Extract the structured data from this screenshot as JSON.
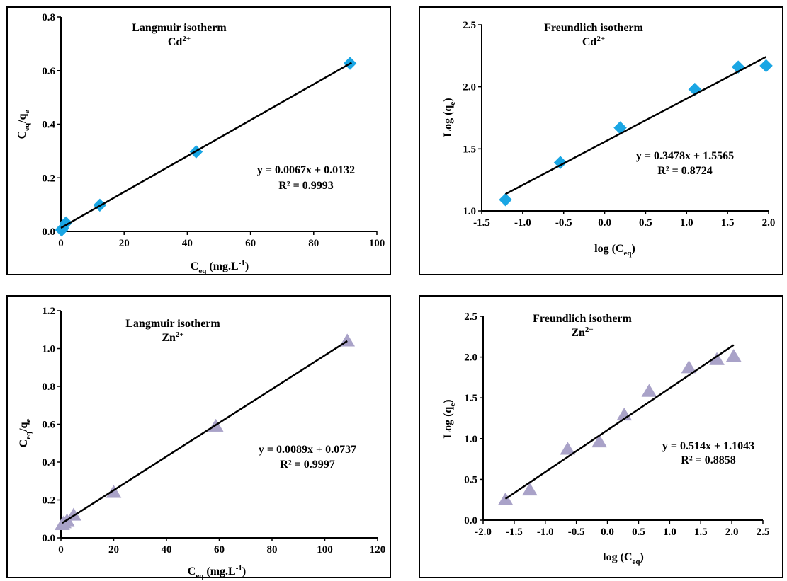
{
  "chart_data": [
    {
      "type": "scatter",
      "title": "Langmuir isotherm",
      "subtitle_base": "Cd",
      "subtitle_sup": "2+",
      "xlabel_base": "C",
      "xlabel_sub": "eq",
      "xlabel_unit_pre": " (mg.L",
      "xlabel_unit_sup": "-1",
      "xlabel_unit_post": ")",
      "ylabel_base1": "C",
      "ylabel_sub1": "eq",
      "ylabel_mid": "/q",
      "ylabel_sub2": "e",
      "xlim": [
        0,
        100
      ],
      "ylim": [
        0,
        0.8
      ],
      "xticks": [
        "0",
        "20",
        "40",
        "60",
        "80",
        "100"
      ],
      "yticks": [
        "0.0",
        "0.2",
        "0.4",
        "0.6",
        "0.8"
      ],
      "marker": "diamond",
      "marker_color": "#1aa6e4",
      "grid": false,
      "x": [
        0.2,
        0.6,
        1.6,
        12.3,
        42.8,
        91.5
      ],
      "y": [
        0.005,
        0.012,
        0.032,
        0.098,
        0.297,
        0.627
      ],
      "fit": {
        "slope": 0.0067,
        "intercept": 0.0132,
        "x_range": [
          0,
          92
        ]
      },
      "equation": "y = 0.0067x + 0.0132",
      "r2": "R² = 0.9993"
    },
    {
      "type": "scatter",
      "title": "Freundlich isotherm",
      "subtitle_base": "Cd",
      "subtitle_sup": "2+",
      "xlabel_base": "log (C",
      "xlabel_sub": "eq",
      "xlabel_unit_pre": ")",
      "xlabel_unit_sup": "",
      "xlabel_unit_post": "",
      "ylabel_base1": "Log (q",
      "ylabel_sub1": "e",
      "ylabel_mid": ")",
      "ylabel_sub2": "",
      "xlim": [
        -1.5,
        2.0
      ],
      "ylim": [
        1.0,
        2.5
      ],
      "xticks": [
        "-1.5",
        "-1.0",
        "-0.5",
        "0.0",
        "0.5",
        "1.0",
        "1.5",
        "2.0"
      ],
      "yticks": [
        "1.0",
        "1.5",
        "2.0",
        "2.5"
      ],
      "marker": "diamond",
      "marker_color": "#1aa6e4",
      "grid": false,
      "x": [
        -1.21,
        -0.54,
        0.19,
        1.1,
        1.63,
        1.97
      ],
      "y": [
        1.09,
        1.39,
        1.67,
        1.98,
        2.16,
        2.17
      ],
      "fit": {
        "slope": 0.3478,
        "intercept": 1.5565,
        "x_range": [
          -1.21,
          1.97
        ]
      },
      "equation": "y = 0.3478x + 1.5565",
      "r2": "R² = 0.8724"
    },
    {
      "type": "scatter",
      "title": "Langmuir isotherm",
      "subtitle_base": "Zn",
      "subtitle_sup": "2+",
      "xlabel_base": "C",
      "xlabel_sub": "eq",
      "xlabel_unit_pre": " (mg.L",
      "xlabel_unit_sup": "-1",
      "xlabel_unit_post": ")",
      "ylabel_base1": "C",
      "ylabel_sub1": "eq",
      "ylabel_mid": "/q",
      "ylabel_sub2": "e",
      "xlim": [
        0,
        120
      ],
      "ylim": [
        0,
        1.2
      ],
      "xticks": [
        "0",
        "20",
        "40",
        "60",
        "80",
        "100",
        "120"
      ],
      "yticks": [
        "0.0",
        "0.2",
        "0.4",
        "0.6",
        "0.8",
        "1.0",
        "1.2"
      ],
      "marker": "triangle",
      "marker_color": "#a9a2c8",
      "grid": false,
      "x": [
        0.5,
        1.1,
        2.3,
        4.8,
        20.0,
        58.7,
        108.5
      ],
      "y": [
        0.07,
        0.08,
        0.09,
        0.12,
        0.24,
        0.59,
        1.04
      ],
      "fit": {
        "slope": 0.0089,
        "intercept": 0.0737,
        "x_range": [
          0.5,
          108.5
        ]
      },
      "equation": "y = 0.0089x + 0.0737",
      "r2": "R² = 0.9997"
    },
    {
      "type": "scatter",
      "title": "Freundlich isotherm",
      "subtitle_base": "Zn",
      "subtitle_sup": "2+",
      "xlabel_base": "log (C",
      "xlabel_sub": "eq",
      "xlabel_unit_pre": ")",
      "xlabel_unit_sup": "",
      "xlabel_unit_post": "",
      "ylabel_base1": "Log (q",
      "ylabel_sub1": "e",
      "ylabel_mid": ")",
      "ylabel_sub2": "",
      "xlim": [
        -2.0,
        2.5
      ],
      "ylim": [
        0.0,
        2.5
      ],
      "xticks": [
        "-2.0",
        "-1.5",
        "-1.0",
        "-0.5",
        "0.0",
        "0.5",
        "1.0",
        "1.5",
        "2.0",
        "2.5"
      ],
      "yticks": [
        "0.0",
        "0.5",
        "1.0",
        "1.5",
        "2.0",
        "2.5"
      ],
      "marker": "triangle",
      "marker_color": "#a9a2c8",
      "grid": false,
      "x": [
        -1.64,
        -1.25,
        -0.64,
        -0.13,
        0.27,
        0.67,
        1.31,
        1.76,
        2.03
      ],
      "y": [
        0.25,
        0.37,
        0.87,
        0.96,
        1.29,
        1.58,
        1.87,
        1.97,
        2.01
      ],
      "fit": {
        "slope": 0.514,
        "intercept": 1.1043,
        "x_range": [
          -1.64,
          2.03
        ]
      },
      "equation": "y = 0.514x + 1.1043",
      "r2": "R² = 0.8858"
    }
  ]
}
